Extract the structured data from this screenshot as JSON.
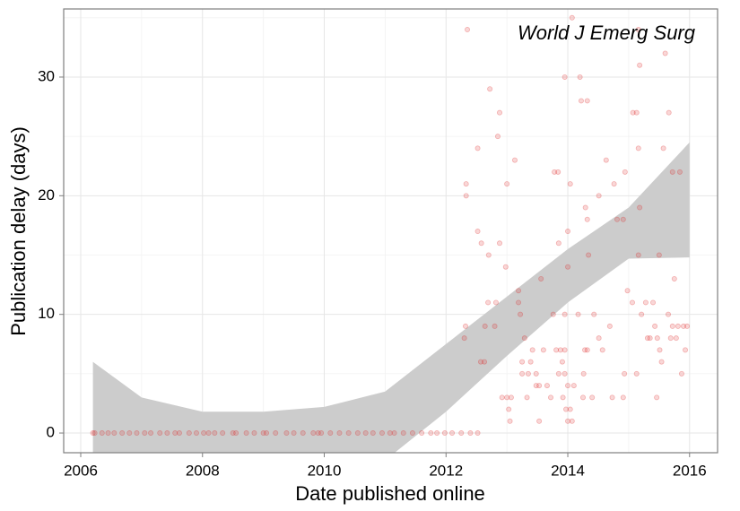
{
  "chart_data": {
    "type": "scatter",
    "xlabel": "Date published online",
    "ylabel": "Publication delay (days)",
    "annotation": "World J Emerg Surg",
    "xlim": [
      2005.72,
      2016.46
    ],
    "ylim": [
      -1.66,
      35.74
    ],
    "xticks": [
      2006,
      2008,
      2010,
      2012,
      2014,
      2016
    ],
    "yticks": [
      0,
      10,
      20,
      30
    ],
    "minor_xticks": [
      2007,
      2009,
      2011,
      2013,
      2015
    ],
    "minor_yticks": [
      5,
      15,
      25,
      35
    ],
    "grid": true,
    "color": "#dd2222",
    "x": [
      2006.2,
      2006.23,
      2006.35,
      2006.45,
      2006.55,
      2006.68,
      2006.8,
      2006.92,
      2007.05,
      2007.15,
      2007.3,
      2007.42,
      2007.55,
      2007.62,
      2007.78,
      2007.9,
      2008.02,
      2008.1,
      2008.2,
      2008.33,
      2008.5,
      2008.55,
      2008.72,
      2008.85,
      2009.0,
      2009.05,
      2009.2,
      2009.38,
      2009.5,
      2009.65,
      2009.82,
      2009.9,
      2009.95,
      2010.1,
      2010.25,
      2010.4,
      2010.55,
      2010.68,
      2010.8,
      2010.95,
      2011.08,
      2011.15,
      2011.3,
      2011.45,
      2011.6,
      2011.75,
      2011.85,
      2011.98,
      2012.1,
      2012.25,
      2012.4,
      2012.52,
      2012.35,
      2012.33,
      2012.33,
      2012.32,
      2012.3,
      2012.52,
      2012.52,
      2012.58,
      2012.57,
      2012.63,
      2012.64,
      2012.69,
      2012.72,
      2012.7,
      2012.8,
      2012.82,
      2012.85,
      2012.88,
      2012.88,
      2013.0,
      2012.98,
      2013.0,
      2012.92,
      2013.07,
      2013.03,
      2013.05,
      2013.13,
      2013.19,
      2013.19,
      2013.22,
      2013.25,
      2013.25,
      2013.29,
      2013.33,
      2013.35,
      2013.39,
      2013.42,
      2013.48,
      2013.48,
      2013.53,
      2013.53,
      2013.56,
      2013.6,
      2013.66,
      2013.72,
      2013.76,
      2013.78,
      2013.81,
      2013.84,
      2013.85,
      2013.85,
      2013.88,
      2013.91,
      2013.95,
      2013.95,
      2013.95,
      2013.92,
      2013.97,
      2014.0,
      2014.0,
      2013.95,
      2014.0,
      2014.0,
      2014.04,
      2014.04,
      2014.07,
      2014.1,
      2014.17,
      2014.2,
      2014.22,
      2014.32,
      2014.25,
      2014.26,
      2014.28,
      2014.32,
      2014.29,
      2014.32,
      2014.34,
      2014.4,
      2014.43,
      2014.51,
      2014.51,
      2014.57,
      2014.63,
      2014.69,
      2014.73,
      2014.76,
      2014.81,
      2014.91,
      2014.91,
      2014.93,
      2014.94,
      2014.98,
      2015.06,
      2015.07,
      2015.13,
      2015.13,
      2015.16,
      2015.16,
      2015.18,
      2015.21,
      2015.28,
      2015.31,
      2015.35,
      2015.4,
      2015.43,
      2015.46,
      2015.47,
      2015.5,
      2015.51,
      2015.54,
      2015.57,
      2015.6,
      2015.65,
      2015.66,
      2015.69,
      2015.72,
      2015.72,
      2015.75,
      2015.78,
      2015.81,
      2015.84,
      2015.87,
      2015.9,
      2015.93,
      2015.96,
      2014.07,
      2015.16,
      2015.18
    ],
    "y": [
      0,
      0,
      0,
      0,
      0,
      0,
      0,
      0,
      0,
      0,
      0,
      0,
      0,
      0,
      0,
      0,
      0,
      0,
      0,
      0,
      0,
      0,
      0,
      0,
      0,
      0,
      0,
      0,
      0,
      0,
      0,
      0,
      0,
      0,
      0,
      0,
      0,
      0,
      0,
      0,
      0,
      0,
      0,
      0,
      0,
      0,
      0,
      0,
      0,
      0,
      0,
      0,
      34,
      21,
      20,
      9,
      8,
      24,
      17,
      16,
      6,
      6,
      9,
      11,
      29,
      15,
      9,
      11,
      25,
      27,
      16,
      21,
      14,
      3,
      3,
      3,
      2,
      1,
      23,
      12,
      11,
      10,
      6,
      5,
      8,
      3,
      5,
      6,
      7,
      4,
      5,
      4,
      1,
      13,
      7,
      4,
      3,
      10,
      22,
      7,
      22,
      16,
      5,
      7,
      6,
      7,
      10,
      5,
      3,
      2,
      1,
      4,
      30,
      14,
      17,
      21,
      2,
      1,
      4,
      10,
      30,
      28,
      28,
      3,
      5,
      7,
      7,
      19,
      18,
      15,
      3,
      10,
      20,
      8,
      7,
      23,
      9,
      3,
      21,
      18,
      18,
      3,
      5,
      22,
      12,
      11,
      27,
      27,
      5,
      24,
      15,
      19,
      10,
      11,
      8,
      8,
      11,
      9,
      3,
      8,
      15,
      7,
      6,
      24,
      32,
      10,
      27,
      8,
      22,
      9,
      13,
      8,
      9,
      22,
      5,
      9,
      7,
      9,
      35,
      34,
      31
    ],
    "band": {
      "color": "#cccccc",
      "x": [
        2006.2,
        2007,
        2008,
        2009,
        2010,
        2011,
        2012,
        2013,
        2014,
        2015,
        2016
      ],
      "lower": [
        -6,
        -4.5,
        -3.8,
        -3.7,
        -3.5,
        -2.3,
        1.8,
        6.5,
        11,
        14.7,
        14.8
      ],
      "upper": [
        6,
        3,
        1.8,
        1.8,
        2.2,
        3.5,
        7.5,
        11.5,
        15.5,
        19,
        24.5
      ]
    }
  }
}
